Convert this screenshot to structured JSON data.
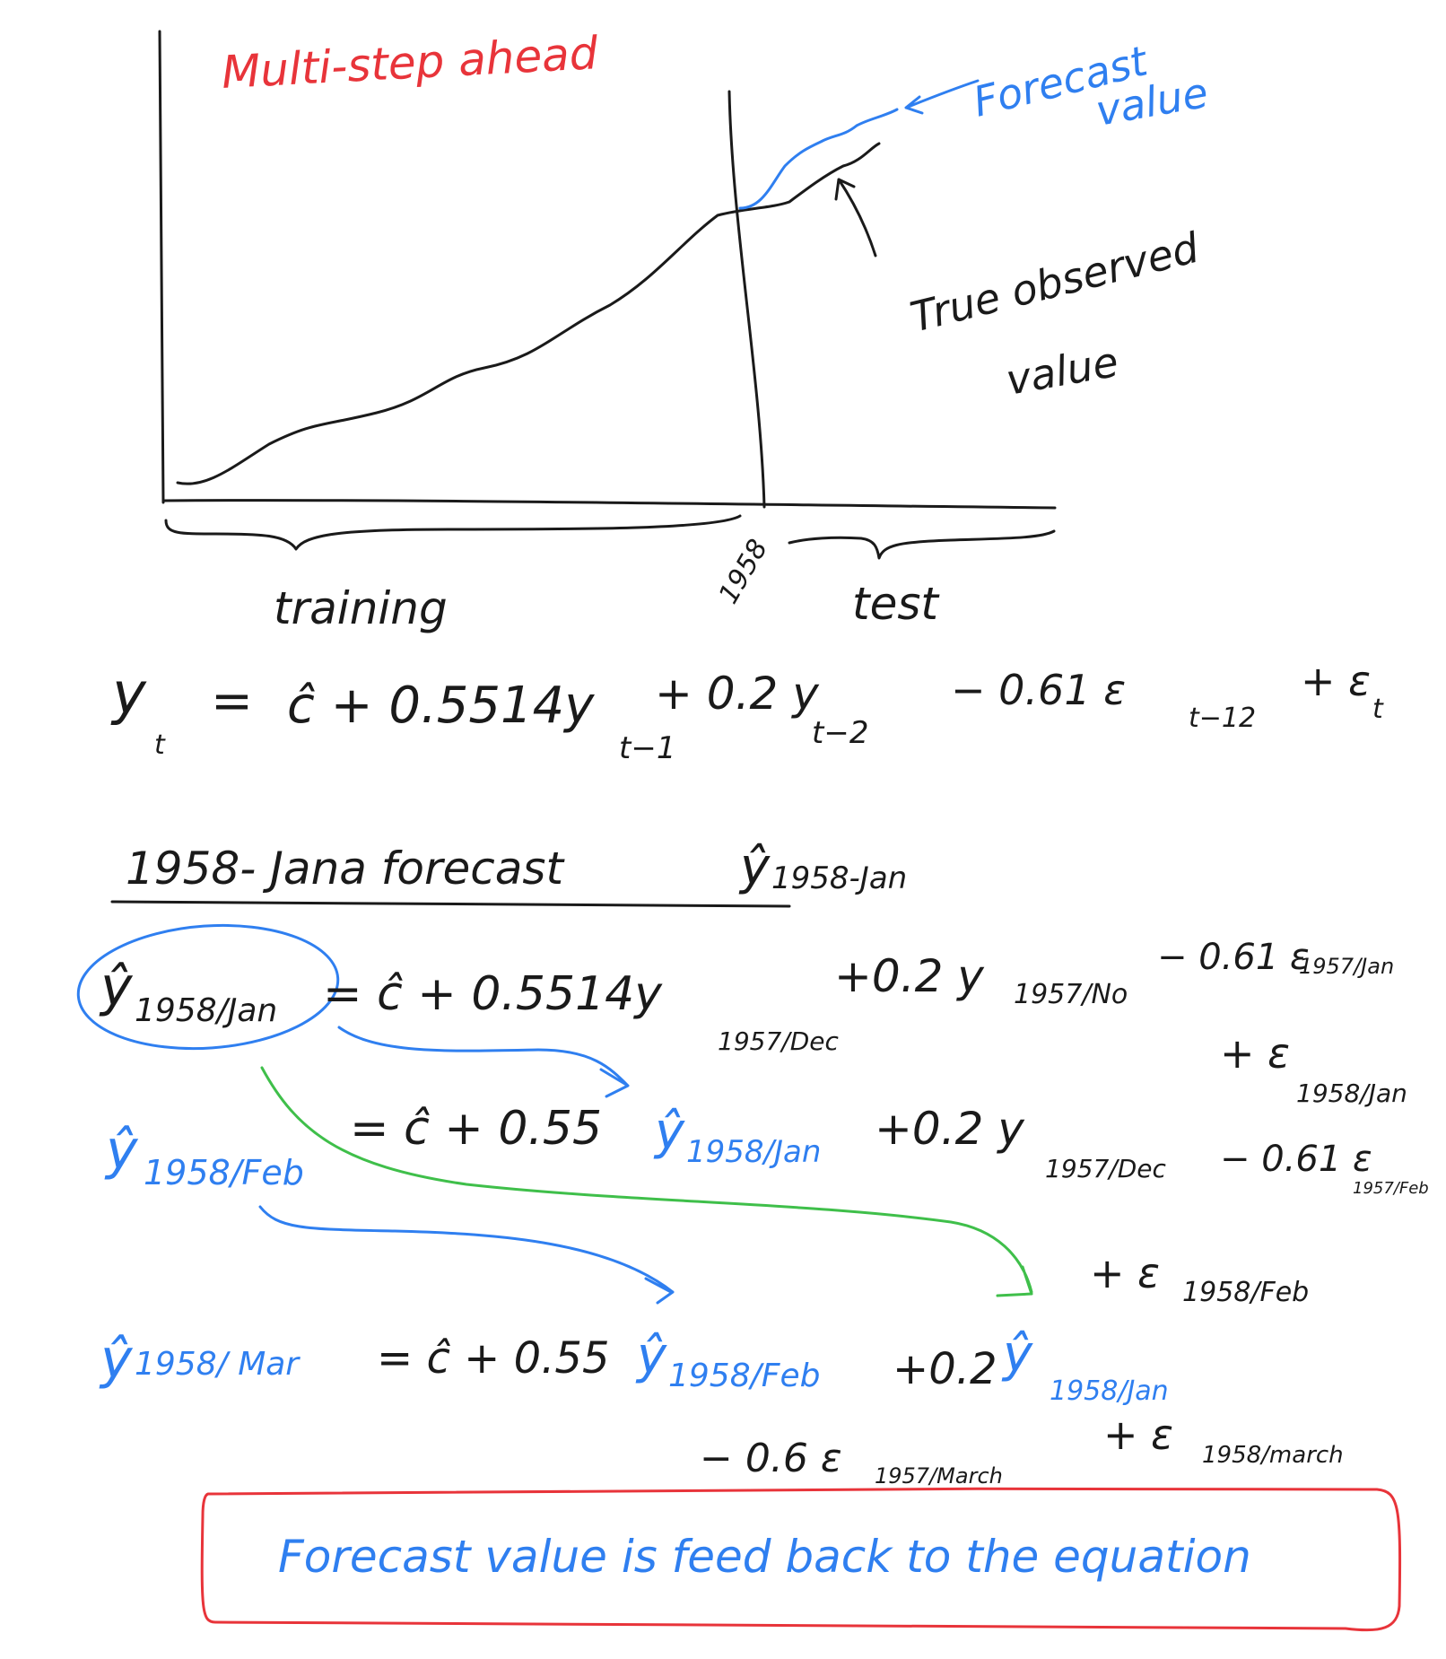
{
  "colors": {
    "ink": "#1a1a1a",
    "red": "#e8343a",
    "blue": "#2f7ff0",
    "green": "#3fbf4a"
  },
  "chart": {
    "title": "Multi-step ahead",
    "forecast_label_1": "Forecast",
    "forecast_label_2": "value",
    "true_label_1": "True observed",
    "true_label_2": "value",
    "split_year": "1958",
    "training_label": "training",
    "test_label": "test"
  },
  "equations": {
    "model": {
      "lhs": "y",
      "lhs_sub": "t",
      "eq": "=",
      "c": "ĉ + 0.5514y",
      "sub1": "t−1",
      "term2": "+ 0.2 y",
      "sub2": "t−2",
      "term3": "− 0.61 ε",
      "sub3": "t−12",
      "term4": "+ ε",
      "sub4": "t"
    },
    "heading": {
      "text": "1958- Jana forecast",
      "yhat": "ŷ",
      "yhat_sub": "1958-Jan"
    },
    "jan": {
      "lhs": "ŷ",
      "lhs_sub": "1958/Jan",
      "rhs_a": "= ĉ + 0.5514y",
      "rhs_a_sub": "1957/Dec",
      "rhs_b": "+0.2 y",
      "rhs_b_sub": "1957/No",
      "rhs_c": "− 0.61 ε",
      "rhs_c_sub": "1957/Jan",
      "rhs_d": "+ ε",
      "rhs_d_sub": "1958/Jan"
    },
    "feb": {
      "lhs": "ŷ",
      "lhs_sub": "1958/Feb",
      "rhs_a": "= ĉ + 0.55",
      "rhs_a_yhat": "ŷ",
      "rhs_a_sub": "1958/Jan",
      "rhs_b": "+0.2 y",
      "rhs_b_sub": "1957/Dec",
      "rhs_c": "− 0.61 ε",
      "rhs_c_sub": "1957/Feb",
      "rhs_d": "+ ε",
      "rhs_d_sub": "1958/Feb"
    },
    "mar": {
      "lhs": "ŷ",
      "lhs_sub": "1958/ Mar",
      "rhs_a": "= ĉ + 0.55",
      "rhs_a_yhat": "ŷ",
      "rhs_a_sub": "1958/Feb",
      "rhs_b": "+0.2",
      "rhs_b_yhat": "ŷ",
      "rhs_b_sub": "1958/Jan",
      "rhs_c": "− 0.6 ε",
      "rhs_c_sub": "1957/March",
      "rhs_d": "+ ε",
      "rhs_d_sub": "1958/march"
    }
  },
  "note": "Forecast value is feed back to the equation"
}
